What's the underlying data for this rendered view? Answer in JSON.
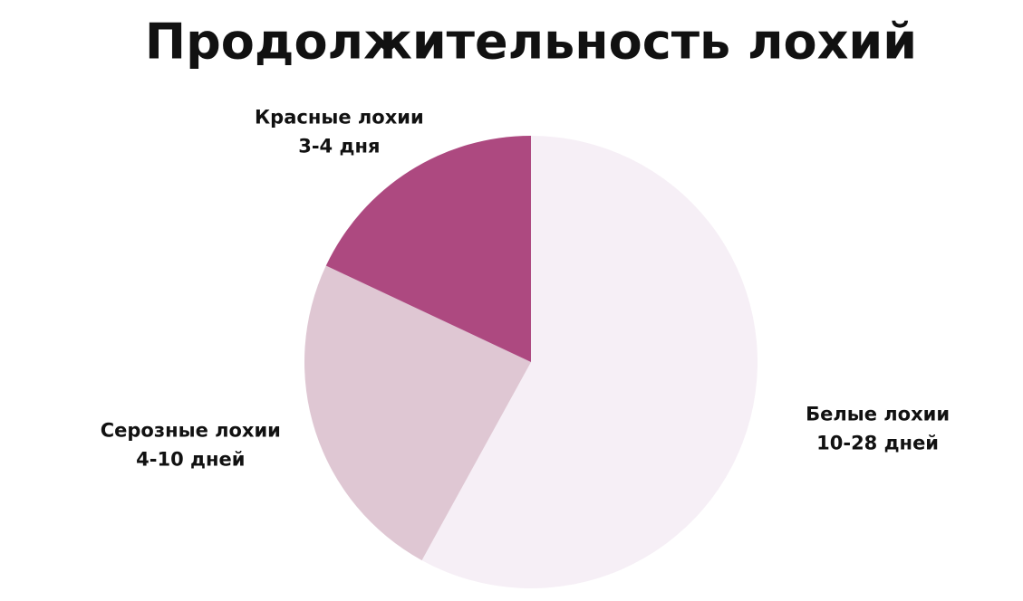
{
  "chart_data": {
    "type": "pie",
    "title": "Продолжительность лохий",
    "categories": [
      "Белые лохии",
      "Серозные лохии",
      "Красные лохии"
    ],
    "durations": [
      "10-28 дней",
      "4-10 дней",
      "3-4 дня"
    ],
    "values": [
      58,
      24,
      18
    ],
    "colors": [
      "#f6eff6",
      "#dfc7d3",
      "#ad4980"
    ]
  }
}
